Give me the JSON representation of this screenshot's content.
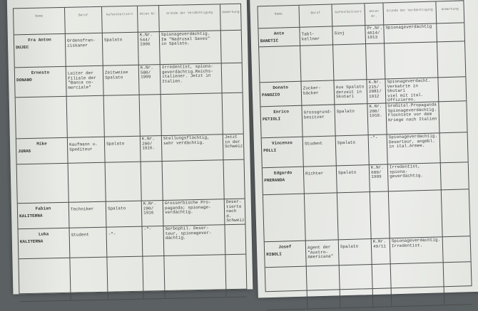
{
  "headers": [
    "Name",
    "Beruf",
    "Aufenthaltsort",
    "Akten Nr.",
    "Gründe der Verdächtigung",
    "Anmerkung"
  ],
  "left_page": {
    "rows": [
      {
        "given": "Fra Anton",
        "surname": "DUJEC",
        "beruf": "Ordensfran-\nziskaner",
        "ort": "Spalato",
        "nr": "K.Nr.\n544/\n1906",
        "gruende": "Spionageverdächtig.\nIm \"Nadrusal Saves\"\nin Spalato.",
        "anmerkung": ""
      },
      {
        "given": "Ernesto",
        "surname": "DONANO",
        "beruf": "Leiter der\nFiliale der\n\"Banca co-\nmerciale\"",
        "ort": "Zeitweise\nSpalato",
        "nr": "K.Nr.\n580/\n1909",
        "gruende": "Irredentist, spiona-\ngeverdächtig.Reichs-\nitaliener. Jetzt in\nItalien.",
        "anmerkung": ""
      },
      {
        "given": "",
        "surname": "",
        "beruf": "",
        "ort": "",
        "nr": "",
        "gruende": "",
        "anmerkung": ""
      },
      {
        "given": "Mike",
        "surname": "JURAS",
        "beruf": "Kaufmann u.\nSpediteur",
        "ort": "Spalato",
        "nr": "K.Nr.\n200/\n1916.",
        "gruende": "Stellungsflüchtig,\nsehr verdächtig.",
        "anmerkung": "Jetzt\nin der\nSchweiz"
      },
      {
        "given": "",
        "surname": "",
        "beruf": "",
        "ort": "",
        "nr": "",
        "gruende": "",
        "anmerkung": ""
      },
      {
        "given": "Fabian",
        "surname": "KALITERNA",
        "beruf": "Techniker",
        "ort": "Spalato",
        "nr": "K.Nr.\n200/\n1916",
        "gruende": "Grosserbische Pro-\npaganda; spionage-\nverdächtig.",
        "anmerkung": "Deser-\ntierte\nnach d.\nSchweiz"
      },
      {
        "given": "Luka",
        "surname": "KALITERNA",
        "beruf": "Student",
        "ort": "-\"-",
        "nr": "-\"-",
        "gruende": "Serbophil. Deser-\nteur, spionagever-\ndächtig.",
        "anmerkung": ""
      },
      {
        "given": "",
        "surname": "",
        "beruf": "",
        "ort": "",
        "nr": "",
        "gruende": "",
        "anmerkung": ""
      }
    ]
  },
  "right_page": {
    "rows": [
      {
        "given": "Ante",
        "surname": "BANETIĆ",
        "beruf": "Tabl-\nkellner",
        "ort": "Sinj",
        "nr": "Pr.Nr.\n4614/\n1913",
        "gruende": "Spionageverdächtig",
        "anmerkung": ""
      },
      {
        "given": "",
        "surname": "",
        "beruf": "",
        "ort": "",
        "nr": "",
        "gruende": "",
        "anmerkung": ""
      },
      {
        "given": "Donato",
        "surname": "PANOZIO",
        "beruf": "Zucker-\nbäcker",
        "ort": "Aus Spalato\nderzeit in\nSkutari",
        "nr": "K.Nr.\n215/\n2081/\n1912",
        "gruende": "Spionageverdacht.\nVerkehrte in Skutari\nviel mit ital.\nOffizieren.",
        "anmerkung": ""
      },
      {
        "given": "Enrico",
        "surname": "PETIOLI",
        "beruf": "Grossgrund-\nbesitzer",
        "ort": "Spalato",
        "nr": "K.Nr.\n200/\n1916.",
        "gruende": "Großital.Propaganda\nSpionageverdächtig.\nFlüchtete vor dem\nKriege nach Italien",
        "anmerkung": ""
      },
      {
        "given": "Vincenzo",
        "surname": "POLLI",
        "beruf": "Student",
        "ort": "Spalato",
        "nr": "-\"-",
        "gruende": "Spionageverdächtig.\nDeserteur, angebl.\nin ital.Armee.",
        "anmerkung": ""
      },
      {
        "given": "Edgardo",
        "surname": "PRERANDA",
        "beruf": "Richter",
        "ort": "Spalato",
        "nr": "K.Nr.\n600/\n1909",
        "gruende": "Irredentist, spiona-\ngeverdächtig.",
        "anmerkung": ""
      },
      {
        "given": "",
        "surname": "",
        "beruf": "",
        "ort": "",
        "nr": "",
        "gruende": "",
        "anmerkung": ""
      },
      {
        "given": "Josef",
        "surname": "RIBOLI",
        "beruf": "Agent der\n\"Austro-\nAmericana\"",
        "ort": "Spalato",
        "nr": "K.Nr.\n49/11",
        "gruende": "Spionageverdächtig.\nIrredentist.",
        "anmerkung": ""
      },
      {
        "given": "",
        "surname": "",
        "beruf": "",
        "ort": "",
        "nr": "",
        "gruende": "",
        "anmerkung": ""
      }
    ]
  },
  "colors": {
    "paper": "#e6e8e3",
    "ink": "#3a3d3c",
    "background": "#5b6063",
    "check_mark": "#c0504d"
  }
}
